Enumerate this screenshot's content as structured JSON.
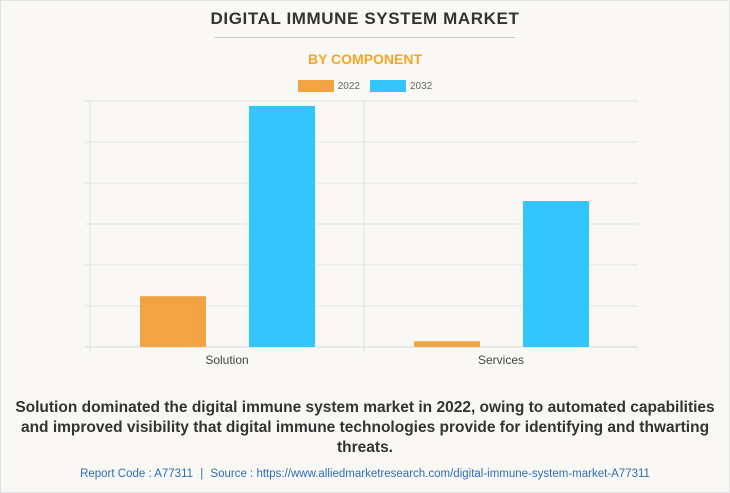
{
  "header": {
    "title": "DIGITAL IMMUNE SYSTEM MARKET",
    "subtitle": "BY COMPONENT"
  },
  "colors": {
    "series_2022": "#f2a444",
    "series_2032": "#33c6fd",
    "subtitle": "#f5a623",
    "footer_link": "#2a6ebb"
  },
  "chart_data": {
    "type": "bar",
    "title": "DIGITAL IMMUNE SYSTEM MARKET",
    "subtitle": "BY COMPONENT",
    "categories": [
      "Solution",
      "Services"
    ],
    "series": [
      {
        "name": "2022",
        "values": [
          1.24,
          0.14
        ]
      },
      {
        "name": "2032",
        "values": [
          5.88,
          3.56
        ]
      }
    ],
    "xlabel": "",
    "ylabel": "",
    "ylim": [
      0,
      6
    ],
    "y_units": "relative (gridline units, no tick labels shown)",
    "grid": true,
    "legend_position": "top-center"
  },
  "caption": "Solution dominated the digital immune system market in 2022, owing to automated capabilities and improved visibility that digital immune technologies provide for identifying and thwarting threats.",
  "footer": {
    "report_code": "Report Code : A77311",
    "separator": "|",
    "source": "Source : https://www.alliedmarketresearch.com/digital-immune-system-market-A77311"
  }
}
